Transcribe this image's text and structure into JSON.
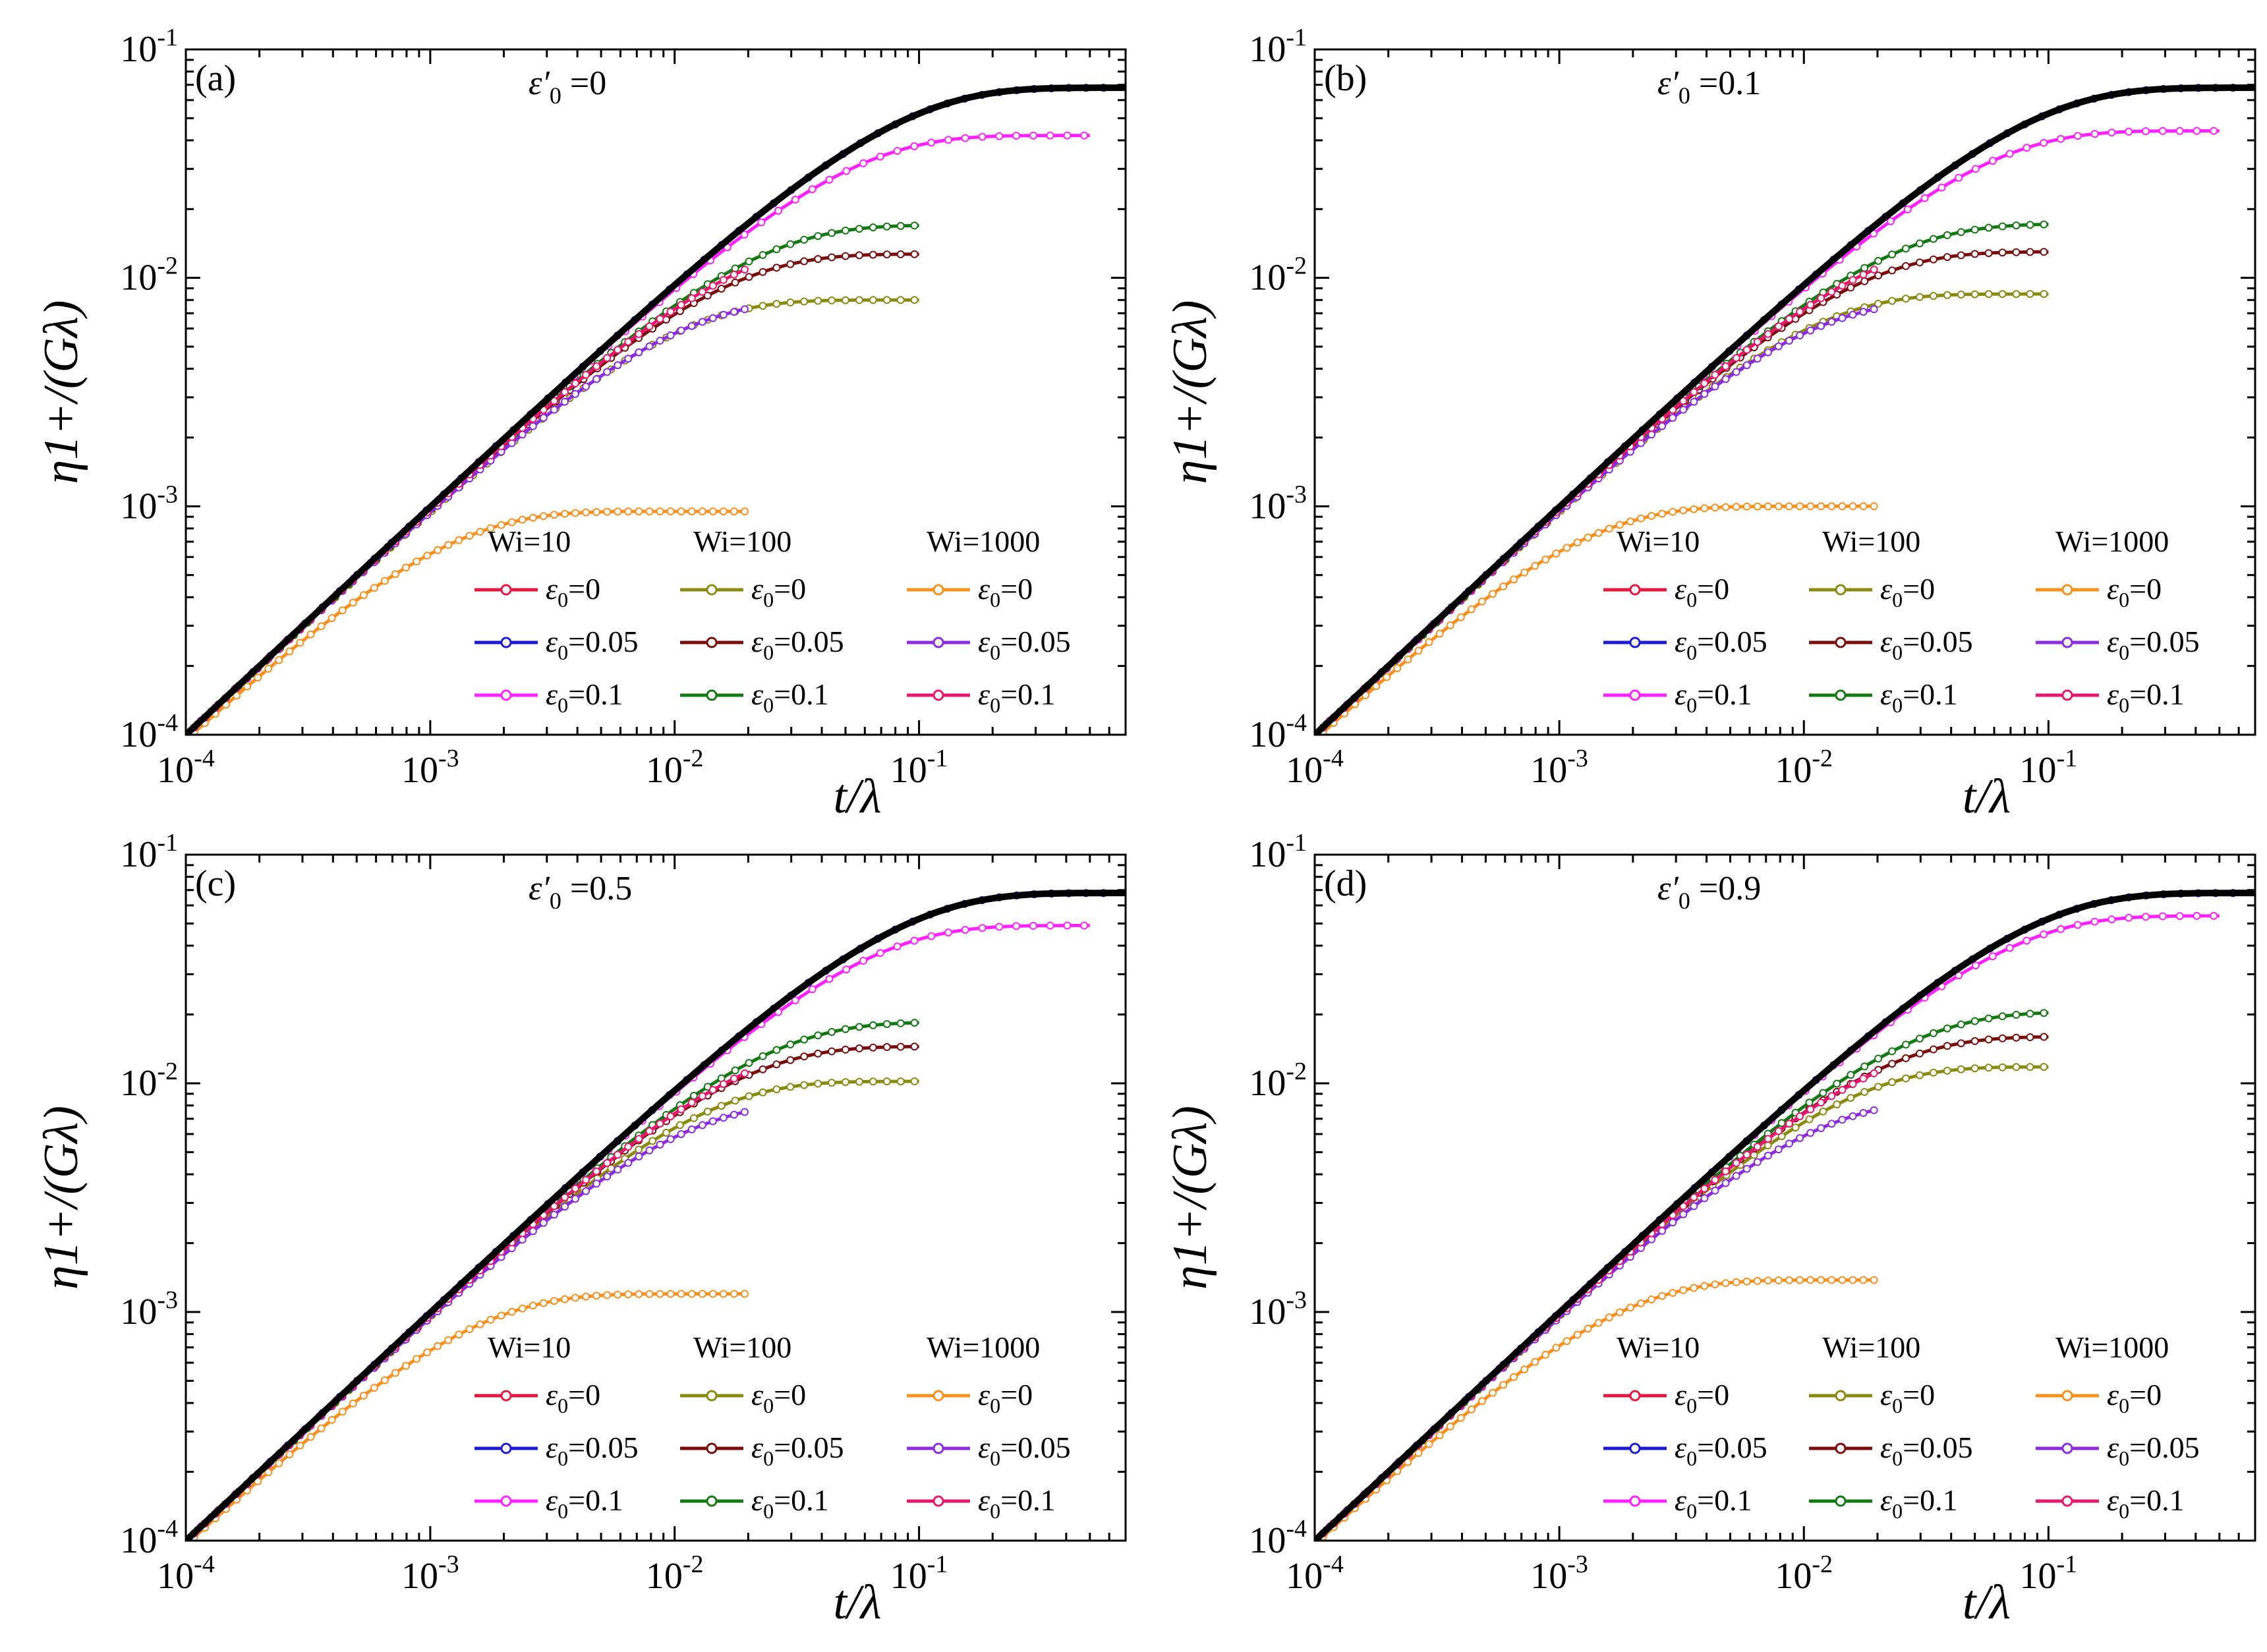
{
  "figure_title": "",
  "chart_data": [
    {
      "type": "line",
      "panel_label": "(a)",
      "annotation": {
        "symbol": "ε′",
        "subscript": "0",
        "value": "=0"
      },
      "xlabel": "t/λ",
      "ylabel": "η1+/(Gλ)",
      "xscale": "log",
      "yscale": "log",
      "xlim": [
        0.0001,
        0.7
      ],
      "ylim": [
        0.0001,
        0.1
      ],
      "xtick_labels": [
        {
          "value": 0.0001,
          "base": "10",
          "exp": "-4"
        },
        {
          "value": 0.001,
          "base": "10",
          "exp": "-3"
        },
        {
          "value": 0.01,
          "base": "10",
          "exp": "-2"
        },
        {
          "value": 0.1,
          "base": "10",
          "exp": "-1"
        }
      ],
      "ytick_labels": [
        {
          "value": 0.0001,
          "base": "10",
          "exp": "-4"
        },
        {
          "value": 0.001,
          "base": "10",
          "exp": "-3"
        },
        {
          "value": 0.01,
          "base": "10",
          "exp": "-2"
        },
        {
          "value": 0.1,
          "base": "10",
          "exp": "-1"
        }
      ],
      "legend": {
        "placement": "lower-right",
        "columns": [
          "Wi=10",
          "Wi=100",
          "Wi=1000"
        ],
        "entries": [
          {
            "col": 0,
            "row": 0,
            "symbol": "ε",
            "sub": "0",
            "label": "=0",
            "color": "#e8173f"
          },
          {
            "col": 0,
            "row": 1,
            "symbol": "ε",
            "sub": "0",
            "label": "=0.05",
            "color": "#1a1ad6"
          },
          {
            "col": 0,
            "row": 2,
            "symbol": "ε",
            "sub": "0",
            "label": "=0.1",
            "color": "#ff20ff"
          },
          {
            "col": 1,
            "row": 0,
            "symbol": "ε",
            "sub": "0",
            "label": "=0",
            "color": "#8a8a10"
          },
          {
            "col": 1,
            "row": 1,
            "symbol": "ε",
            "sub": "0",
            "label": "=0.05",
            "color": "#7a0c0c"
          },
          {
            "col": 1,
            "row": 2,
            "symbol": "ε",
            "sub": "0",
            "label": "=0.1",
            "color": "#137a13"
          },
          {
            "col": 2,
            "row": 0,
            "symbol": "ε",
            "sub": "0",
            "label": "=0",
            "color": "#f7901e"
          },
          {
            "col": 2,
            "row": 1,
            "symbol": "ε",
            "sub": "0",
            "label": "=0.05",
            "color": "#8b2be2"
          },
          {
            "col": 2,
            "row": 2,
            "symbol": "ε",
            "sub": "0",
            "label": "=0.1",
            "color": "#e8176e"
          }
        ]
      },
      "series": [
        {
          "name": "Wi=10, ε0=0",
          "color": "#e8173f",
          "plateau": 0.068,
          "t_end": 0.6
        },
        {
          "name": "Wi=10, ε0=0.05",
          "color": "#1a1ad6",
          "plateau": 0.068,
          "t_end": 0.6
        },
        {
          "name": "Wi=10, ε0=0.1",
          "color": "#ff20ff",
          "plateau": 0.042,
          "t_end": 0.5
        },
        {
          "name": "Wi=100, ε0=0",
          "color": "#8a8a10",
          "plateau": 0.008,
          "t_end": 0.1
        },
        {
          "name": "Wi=100, ε0=0.05",
          "color": "#7a0c0c",
          "plateau": 0.0127,
          "t_end": 0.1
        },
        {
          "name": "Wi=100, ε0=0.1",
          "color": "#137a13",
          "plateau": 0.017,
          "t_end": 0.1
        },
        {
          "name": "Wi=1000, ε0=0",
          "color": "#f7901e",
          "plateau": 0.00095,
          "t_end": 0.02
        },
        {
          "name": "Wi=1000, ε0=0.05",
          "color": "#8b2be2",
          "plateau": 0.008,
          "t_end": 0.02
        },
        {
          "name": "Wi=1000, ε0=0.1",
          "color": "#e8176e",
          "plateau": 0.015,
          "t_end": 0.02
        },
        {
          "name": "reference",
          "color": "#000000",
          "plateau": 0.068,
          "t_end": 0.7
        }
      ]
    },
    {
      "type": "line",
      "panel_label": "(b)",
      "annotation": {
        "symbol": "ε′",
        "subscript": "0",
        "value": "=0.1"
      },
      "xlabel": "t/λ",
      "ylabel": "η1+/(Gλ)",
      "xscale": "log",
      "yscale": "log",
      "xlim": [
        0.0001,
        0.7
      ],
      "ylim": [
        0.0001,
        0.1
      ],
      "xtick_labels": [
        {
          "value": 0.0001,
          "base": "10",
          "exp": "-4"
        },
        {
          "value": 0.001,
          "base": "10",
          "exp": "-3"
        },
        {
          "value": 0.01,
          "base": "10",
          "exp": "-2"
        },
        {
          "value": 0.1,
          "base": "10",
          "exp": "-1"
        }
      ],
      "ytick_labels": [
        {
          "value": 0.0001,
          "base": "10",
          "exp": "-4"
        },
        {
          "value": 0.001,
          "base": "10",
          "exp": "-3"
        },
        {
          "value": 0.01,
          "base": "10",
          "exp": "-2"
        },
        {
          "value": 0.1,
          "base": "10",
          "exp": "-1"
        }
      ],
      "legend": {
        "placement": "lower-right",
        "columns": [
          "Wi=10",
          "Wi=100",
          "Wi=1000"
        ],
        "entries": [
          {
            "col": 0,
            "row": 0,
            "symbol": "ε",
            "sub": "0",
            "label": "=0",
            "color": "#e8173f"
          },
          {
            "col": 0,
            "row": 1,
            "symbol": "ε",
            "sub": "0",
            "label": "=0.05",
            "color": "#1a1ad6"
          },
          {
            "col": 0,
            "row": 2,
            "symbol": "ε",
            "sub": "0",
            "label": "=0.1",
            "color": "#ff20ff"
          },
          {
            "col": 1,
            "row": 0,
            "symbol": "ε",
            "sub": "0",
            "label": "=0",
            "color": "#8a8a10"
          },
          {
            "col": 1,
            "row": 1,
            "symbol": "ε",
            "sub": "0",
            "label": "=0.05",
            "color": "#7a0c0c"
          },
          {
            "col": 1,
            "row": 2,
            "symbol": "ε",
            "sub": "0",
            "label": "=0.1",
            "color": "#137a13"
          },
          {
            "col": 2,
            "row": 0,
            "symbol": "ε",
            "sub": "0",
            "label": "=0",
            "color": "#f7901e"
          },
          {
            "col": 2,
            "row": 1,
            "symbol": "ε",
            "sub": "0",
            "label": "=0.05",
            "color": "#8b2be2"
          },
          {
            "col": 2,
            "row": 2,
            "symbol": "ε",
            "sub": "0",
            "label": "=0.1",
            "color": "#e8176e"
          }
        ]
      },
      "series": [
        {
          "name": "Wi=10, ε0=0",
          "color": "#e8173f",
          "plateau": 0.068,
          "t_end": 0.6
        },
        {
          "name": "Wi=10, ε0=0.05",
          "color": "#1a1ad6",
          "plateau": 0.068,
          "t_end": 0.6
        },
        {
          "name": "Wi=10, ε0=0.1",
          "color": "#ff20ff",
          "plateau": 0.044,
          "t_end": 0.5
        },
        {
          "name": "Wi=100, ε0=0",
          "color": "#8a8a10",
          "plateau": 0.0085,
          "t_end": 0.1
        },
        {
          "name": "Wi=100, ε0=0.05",
          "color": "#7a0c0c",
          "plateau": 0.013,
          "t_end": 0.1
        },
        {
          "name": "Wi=100, ε0=0.1",
          "color": "#137a13",
          "plateau": 0.0172,
          "t_end": 0.1
        },
        {
          "name": "Wi=1000, ε0=0",
          "color": "#f7901e",
          "plateau": 0.001,
          "t_end": 0.02
        },
        {
          "name": "Wi=1000, ε0=0.05",
          "color": "#8b2be2",
          "plateau": 0.008,
          "t_end": 0.02
        },
        {
          "name": "Wi=1000, ε0=0.1",
          "color": "#e8176e",
          "plateau": 0.015,
          "t_end": 0.02
        },
        {
          "name": "reference",
          "color": "#000000",
          "plateau": 0.068,
          "t_end": 0.7
        }
      ]
    },
    {
      "type": "line",
      "panel_label": "(c)",
      "annotation": {
        "symbol": "ε′",
        "subscript": "0",
        "value": "=0.5"
      },
      "xlabel": "t/λ",
      "ylabel": "η1+/(Gλ)",
      "xscale": "log",
      "yscale": "log",
      "xlim": [
        0.0001,
        0.7
      ],
      "ylim": [
        0.0001,
        0.1
      ],
      "xtick_labels": [
        {
          "value": 0.0001,
          "base": "10",
          "exp": "-4"
        },
        {
          "value": 0.001,
          "base": "10",
          "exp": "-3"
        },
        {
          "value": 0.01,
          "base": "10",
          "exp": "-2"
        },
        {
          "value": 0.1,
          "base": "10",
          "exp": "-1"
        }
      ],
      "ytick_labels": [
        {
          "value": 0.0001,
          "base": "10",
          "exp": "-4"
        },
        {
          "value": 0.001,
          "base": "10",
          "exp": "-3"
        },
        {
          "value": 0.01,
          "base": "10",
          "exp": "-2"
        },
        {
          "value": 0.1,
          "base": "10",
          "exp": "-1"
        }
      ],
      "legend": {
        "placement": "lower-right",
        "columns": [
          "Wi=10",
          "Wi=100",
          "Wi=1000"
        ],
        "entries": [
          {
            "col": 0,
            "row": 0,
            "symbol": "ε",
            "sub": "0",
            "label": "=0",
            "color": "#e8173f"
          },
          {
            "col": 0,
            "row": 1,
            "symbol": "ε",
            "sub": "0",
            "label": "=0.05",
            "color": "#1a1ad6"
          },
          {
            "col": 0,
            "row": 2,
            "symbol": "ε",
            "sub": "0",
            "label": "=0.1",
            "color": "#ff20ff"
          },
          {
            "col": 1,
            "row": 0,
            "symbol": "ε",
            "sub": "0",
            "label": "=0",
            "color": "#8a8a10"
          },
          {
            "col": 1,
            "row": 1,
            "symbol": "ε",
            "sub": "0",
            "label": "=0.05",
            "color": "#7a0c0c"
          },
          {
            "col": 1,
            "row": 2,
            "symbol": "ε",
            "sub": "0",
            "label": "=0.1",
            "color": "#137a13"
          },
          {
            "col": 2,
            "row": 0,
            "symbol": "ε",
            "sub": "0",
            "label": "=0",
            "color": "#f7901e"
          },
          {
            "col": 2,
            "row": 1,
            "symbol": "ε",
            "sub": "0",
            "label": "=0.05",
            "color": "#8b2be2"
          },
          {
            "col": 2,
            "row": 2,
            "symbol": "ε",
            "sub": "0",
            "label": "=0.1",
            "color": "#e8176e"
          }
        ]
      },
      "series": [
        {
          "name": "Wi=10, ε0=0",
          "color": "#e8173f",
          "plateau": 0.068,
          "t_end": 0.6
        },
        {
          "name": "Wi=10, ε0=0.05",
          "color": "#1a1ad6",
          "plateau": 0.068,
          "t_end": 0.6
        },
        {
          "name": "Wi=10, ε0=0.1",
          "color": "#ff20ff",
          "plateau": 0.049,
          "t_end": 0.5
        },
        {
          "name": "Wi=100, ε0=0",
          "color": "#8a8a10",
          "plateau": 0.0102,
          "t_end": 0.1
        },
        {
          "name": "Wi=100, ε0=0.05",
          "color": "#7a0c0c",
          "plateau": 0.0145,
          "t_end": 0.1
        },
        {
          "name": "Wi=100, ε0=0.1",
          "color": "#137a13",
          "plateau": 0.0185,
          "t_end": 0.1
        },
        {
          "name": "Wi=1000, ε0=0",
          "color": "#f7901e",
          "plateau": 0.0012,
          "t_end": 0.02
        },
        {
          "name": "Wi=1000, ε0=0.05",
          "color": "#8b2be2",
          "plateau": 0.0083,
          "t_end": 0.02
        },
        {
          "name": "Wi=1000, ε0=0.1",
          "color": "#e8176e",
          "plateau": 0.0155,
          "t_end": 0.02
        },
        {
          "name": "reference",
          "color": "#000000",
          "plateau": 0.068,
          "t_end": 0.7
        }
      ]
    },
    {
      "type": "line",
      "panel_label": "(d)",
      "annotation": {
        "symbol": "ε′",
        "subscript": "0",
        "value": "=0.9"
      },
      "xlabel": "t/λ",
      "ylabel": "η1+/(Gλ)",
      "xscale": "log",
      "yscale": "log",
      "xlim": [
        0.0001,
        0.7
      ],
      "ylim": [
        0.0001,
        0.1
      ],
      "xtick_labels": [
        {
          "value": 0.0001,
          "base": "10",
          "exp": "-4"
        },
        {
          "value": 0.001,
          "base": "10",
          "exp": "-3"
        },
        {
          "value": 0.01,
          "base": "10",
          "exp": "-2"
        },
        {
          "value": 0.1,
          "base": "10",
          "exp": "-1"
        }
      ],
      "ytick_labels": [
        {
          "value": 0.0001,
          "base": "10",
          "exp": "-4"
        },
        {
          "value": 0.001,
          "base": "10",
          "exp": "-3"
        },
        {
          "value": 0.01,
          "base": "10",
          "exp": "-2"
        },
        {
          "value": 0.1,
          "base": "10",
          "exp": "-1"
        }
      ],
      "legend": {
        "placement": "lower-right",
        "columns": [
          "Wi=10",
          "Wi=100",
          "Wi=1000"
        ],
        "entries": [
          {
            "col": 0,
            "row": 0,
            "symbol": "ε",
            "sub": "0",
            "label": "=0",
            "color": "#e8173f"
          },
          {
            "col": 0,
            "row": 1,
            "symbol": "ε",
            "sub": "0",
            "label": "=0.05",
            "color": "#1a1ad6"
          },
          {
            "col": 0,
            "row": 2,
            "symbol": "ε",
            "sub": "0",
            "label": "=0.1",
            "color": "#ff20ff"
          },
          {
            "col": 1,
            "row": 0,
            "symbol": "ε",
            "sub": "0",
            "label": "=0",
            "color": "#8a8a10"
          },
          {
            "col": 1,
            "row": 1,
            "symbol": "ε",
            "sub": "0",
            "label": "=0.05",
            "color": "#7a0c0c"
          },
          {
            "col": 1,
            "row": 2,
            "symbol": "ε",
            "sub": "0",
            "label": "=0.1",
            "color": "#137a13"
          },
          {
            "col": 2,
            "row": 0,
            "symbol": "ε",
            "sub": "0",
            "label": "=0",
            "color": "#f7901e"
          },
          {
            "col": 2,
            "row": 1,
            "symbol": "ε",
            "sub": "0",
            "label": "=0.05",
            "color": "#8b2be2"
          },
          {
            "col": 2,
            "row": 2,
            "symbol": "ε",
            "sub": "0",
            "label": "=0.1",
            "color": "#e8176e"
          }
        ]
      },
      "series": [
        {
          "name": "Wi=10, ε0=0",
          "color": "#e8173f",
          "plateau": 0.068,
          "t_end": 0.6
        },
        {
          "name": "Wi=10, ε0=0.05",
          "color": "#1a1ad6",
          "plateau": 0.068,
          "t_end": 0.6
        },
        {
          "name": "Wi=10, ε0=0.1",
          "color": "#ff20ff",
          "plateau": 0.054,
          "t_end": 0.5
        },
        {
          "name": "Wi=100, ε0=0",
          "color": "#8a8a10",
          "plateau": 0.0118,
          "t_end": 0.1
        },
        {
          "name": "Wi=100, ε0=0.05",
          "color": "#7a0c0c",
          "plateau": 0.016,
          "t_end": 0.1
        },
        {
          "name": "Wi=100, ε0=0.1",
          "color": "#137a13",
          "plateau": 0.0205,
          "t_end": 0.1
        },
        {
          "name": "Wi=1000, ε0=0",
          "color": "#f7901e",
          "plateau": 0.00138,
          "t_end": 0.02
        },
        {
          "name": "Wi=1000, ε0=0.05",
          "color": "#8b2be2",
          "plateau": 0.0085,
          "t_end": 0.02
        },
        {
          "name": "Wi=1000, ε0=0.1",
          "color": "#e8176e",
          "plateau": 0.0155,
          "t_end": 0.02
        },
        {
          "name": "reference",
          "color": "#000000",
          "plateau": 0.068,
          "t_end": 0.7
        }
      ]
    }
  ]
}
